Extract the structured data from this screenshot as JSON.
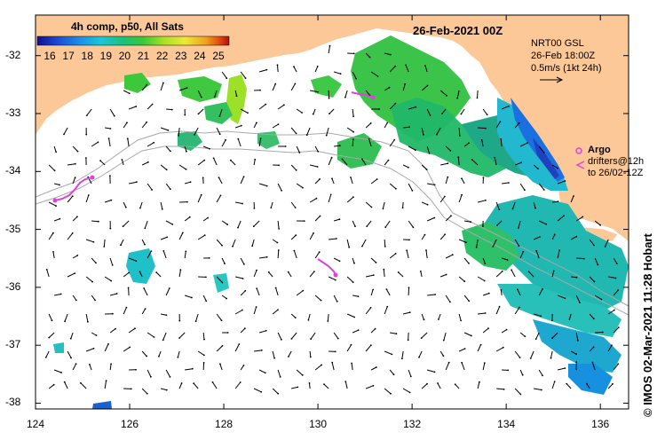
{
  "colorbar": {
    "title": "4h comp, p50, All Sats",
    "ticks": [
      "16",
      "17",
      "18",
      "19",
      "20",
      "21",
      "22",
      "23",
      "24",
      "25"
    ],
    "colors": [
      "#10108a",
      "#1b47d6",
      "#1a8ee8",
      "#18c8d8",
      "#1cc07a",
      "#38c838",
      "#a8e028",
      "#f0e838",
      "#f0a020",
      "#e04810",
      "#b01010"
    ]
  },
  "header": {
    "date": "26-Feb-2021 00Z"
  },
  "current_info": {
    "model": "NRT00 GSL",
    "valid": "26-Feb 18:00Z",
    "scale": "0.5m/s (1kt 24h)"
  },
  "argo": {
    "label": "Argo",
    "drifters_line1": "drifters@12h",
    "drifters_line2": "to 26/02-12Z"
  },
  "credit": "© IMOS 02-Mar-2021 11:28 Hobart",
  "axes": {
    "lon_ticks": [
      124,
      126,
      128,
      130,
      132,
      134,
      136
    ],
    "lat_ticks": [
      -32,
      -33,
      -34,
      -35,
      -36,
      -37,
      -38
    ],
    "lon_range": [
      124,
      136.6
    ],
    "lat_range": [
      -38.1,
      -31.3
    ]
  },
  "colors": {
    "land": "#fcc898",
    "ocean": "#ffffff",
    "argo": "#e040e0",
    "bathymetry": "#a8a8a8"
  }
}
